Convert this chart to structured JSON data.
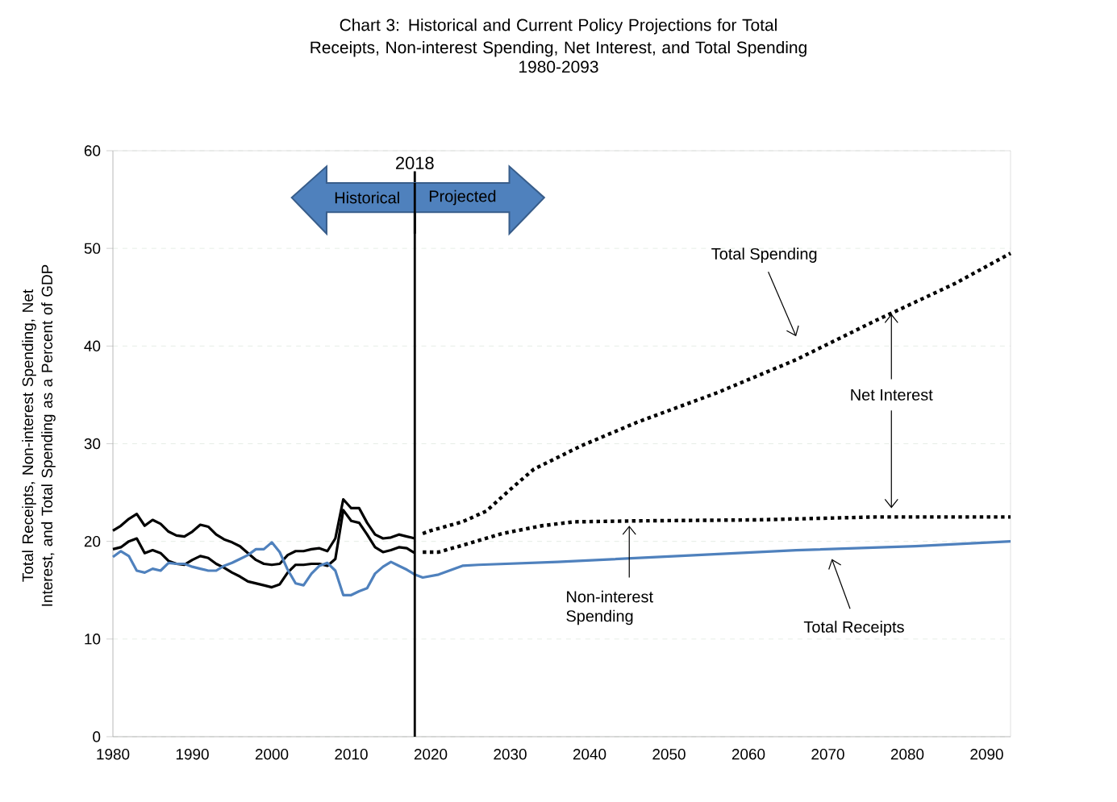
{
  "chart_data": {
    "type": "line",
    "title": "Chart 3:  Historical and Current Policy Projections for Total Receipts, Non-interest Spending, Net Interest, and Total Spending",
    "subtitle": "1980-2093",
    "ylabel": "Total Receipts, Non-interest Spending, Net Interest, and Total Spending as a Percent of GDP",
    "xlim": [
      1980,
      2093
    ],
    "xticks": [
      1980,
      1990,
      2000,
      2010,
      2020,
      2030,
      2040,
      2050,
      2060,
      2070,
      2080,
      2090
    ],
    "ylim": [
      0,
      60
    ],
    "yticks": [
      0,
      10,
      20,
      30,
      40,
      50,
      60
    ],
    "grid": "y",
    "series": [
      {
        "color": "#000000",
        "line_style": "solid",
        "x": [
          1980,
          1981,
          1982,
          1983,
          1984,
          1985,
          1986,
          1987,
          1988,
          1989,
          1990,
          1991,
          1992,
          1993,
          1994,
          1995,
          1996,
          1997,
          1998,
          1999,
          2000,
          2001,
          2002,
          2003,
          2004,
          2005,
          2006,
          2007,
          2008,
          2009,
          2010,
          2011,
          2012,
          2013,
          2014,
          2015,
          2016,
          2017,
          2018
        ],
        "values": [
          21.1,
          21.6,
          22.3,
          22.8,
          21.6,
          22.2,
          21.8,
          21.0,
          20.6,
          20.5,
          21.0,
          21.7,
          21.5,
          20.7,
          20.2,
          19.9,
          19.5,
          18.8,
          18.1,
          17.7,
          17.6,
          17.7,
          18.6,
          19.0,
          19.0,
          19.2,
          19.3,
          19.0,
          20.3,
          24.3,
          23.4,
          23.4,
          21.9,
          20.7,
          20.3,
          20.4,
          20.7,
          20.5,
          20.3
        ]
      },
      {
        "color": "#000000",
        "line_style": "solid",
        "x": [
          1980,
          1981,
          1982,
          1983,
          1984,
          1985,
          1986,
          1987,
          1988,
          1989,
          1990,
          1991,
          1992,
          1993,
          1994,
          1995,
          1996,
          1997,
          1998,
          1999,
          2000,
          2001,
          2002,
          2003,
          2004,
          2005,
          2006,
          2007,
          2008,
          2009,
          2010,
          2011,
          2012,
          2013,
          2014,
          2015,
          2016,
          2017,
          2018
        ],
        "values": [
          19.2,
          19.4,
          20.0,
          20.3,
          18.8,
          19.1,
          18.8,
          18.0,
          17.7,
          17.6,
          18.1,
          18.5,
          18.3,
          17.7,
          17.3,
          16.8,
          16.4,
          15.9,
          15.7,
          15.5,
          15.3,
          15.6,
          16.8,
          17.6,
          17.6,
          17.7,
          17.7,
          17.5,
          18.2,
          23.2,
          22.1,
          21.9,
          20.7,
          19.4,
          18.9,
          19.1,
          19.4,
          19.3,
          18.8
        ]
      },
      {
        "color": "#4f81bd",
        "line_style": "solid",
        "x": [
          1980,
          1981,
          1982,
          1983,
          1984,
          1985,
          1986,
          1987,
          1988,
          1989,
          1990,
          1991,
          1992,
          1993,
          1994,
          1995,
          1996,
          1997,
          1998,
          1999,
          2000,
          2001,
          2002,
          2003,
          2004,
          2005,
          2006,
          2007,
          2008,
          2009,
          2010,
          2011,
          2012,
          2013,
          2014,
          2015,
          2016,
          2017,
          2018,
          2019,
          2021,
          2024,
          2026,
          2036,
          2051,
          2066,
          2081,
          2093
        ],
        "values": [
          18.4,
          19.0,
          18.5,
          17.0,
          16.8,
          17.2,
          17.0,
          17.8,
          17.7,
          17.7,
          17.4,
          17.2,
          17.0,
          17.0,
          17.5,
          17.8,
          18.2,
          18.6,
          19.2,
          19.2,
          19.9,
          18.9,
          17.1,
          15.7,
          15.5,
          16.7,
          17.5,
          17.8,
          17.0,
          14.5,
          14.5,
          14.9,
          15.2,
          16.7,
          17.4,
          17.9,
          17.5,
          17.1,
          16.6,
          16.3,
          16.6,
          17.5,
          17.6,
          17.9,
          18.5,
          19.1,
          19.5,
          20.0
        ]
      },
      {
        "color": "#000000",
        "line_style": "dotted",
        "x": [
          2019,
          2020,
          2024,
          2027,
          2030,
          2033,
          2039,
          2046,
          2056,
          2066,
          2076,
          2086,
          2093
        ],
        "values": [
          20.8,
          21.1,
          22.0,
          23.1,
          25.3,
          27.4,
          29.8,
          32.2,
          35.2,
          38.6,
          42.6,
          46.4,
          49.5
        ]
      },
      {
        "color": "#000000",
        "line_style": "dotted",
        "x": [
          2019,
          2021,
          2024,
          2029,
          2034,
          2038,
          2046,
          2061,
          2076,
          2093
        ],
        "values": [
          18.9,
          18.9,
          19.6,
          20.8,
          21.6,
          22.0,
          22.1,
          22.2,
          22.5,
          22.5
        ]
      }
    ],
    "ref_lines": [
      {
        "axis": "x",
        "value": 2018,
        "label": "2018",
        "color": "#000000"
      }
    ],
    "annotations": [
      "Total Spending",
      {
        "text": "Net Interest",
        "x": 2078,
        "y": 43.3
      },
      "Non-interest Spending",
      "Total Receipts",
      "Historical",
      "Projected"
    ]
  }
}
